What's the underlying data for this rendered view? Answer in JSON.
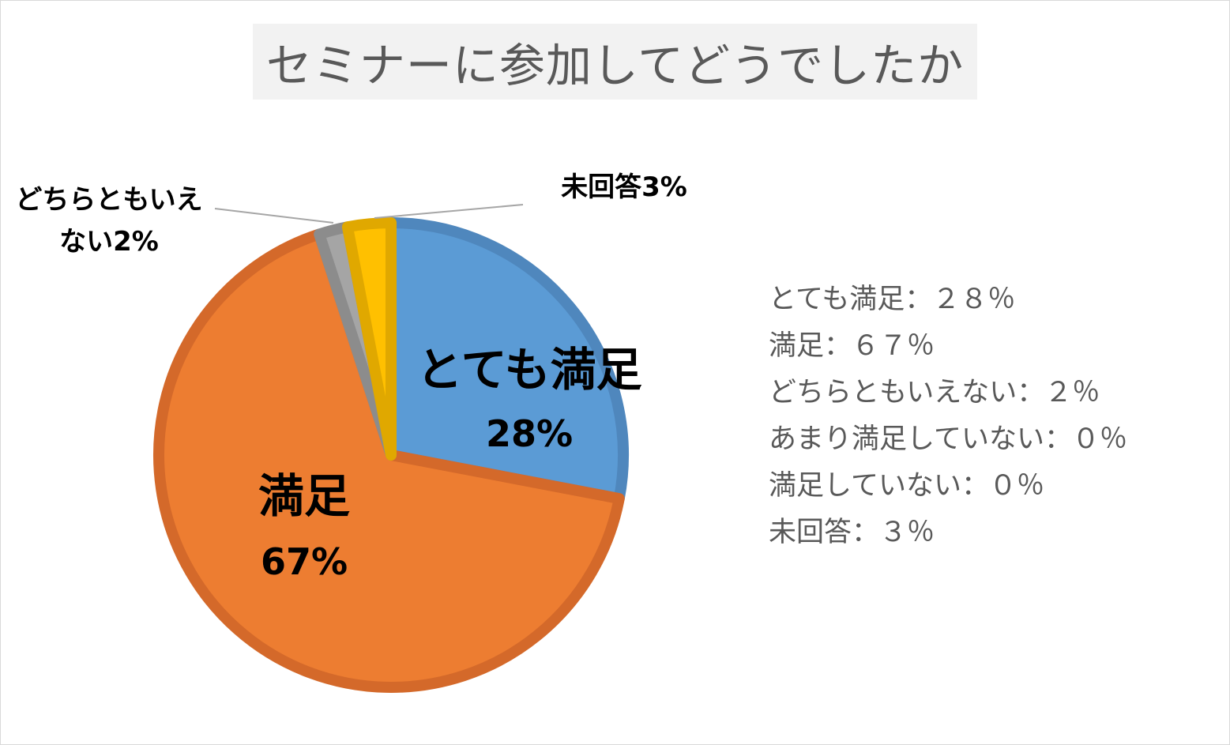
{
  "chart_data": {
    "type": "pie",
    "title": "セミナーに参加してどうでしたか",
    "slices": [
      {
        "name": "とても満足",
        "value": 28,
        "value_label": "28%",
        "color": "#5b9bd5",
        "stroke": "#4f87bd"
      },
      {
        "name": "満足",
        "value": 67,
        "value_label": "67%",
        "color": "#ed7d31",
        "stroke": "#d4692a"
      },
      {
        "name": "どちらともいえない",
        "value": 2,
        "value_label": "2%",
        "color": "#a5a5a5",
        "stroke": "#8c8c8c"
      },
      {
        "name": "未回答",
        "value": 3,
        "value_label": "3%",
        "color": "#ffc000",
        "stroke": "#e0a800"
      }
    ],
    "callouts": {
      "neutral_line1": "どちらともいえ",
      "neutral_line2": "ない2%",
      "no_answer": "未回答3%"
    }
  },
  "summary": [
    "とても満足：２８％",
    "満足：６７％",
    "どちらともいえない：２％",
    "あまり満足していない：０％",
    "満足していない：０％",
    "未回答：３％"
  ]
}
